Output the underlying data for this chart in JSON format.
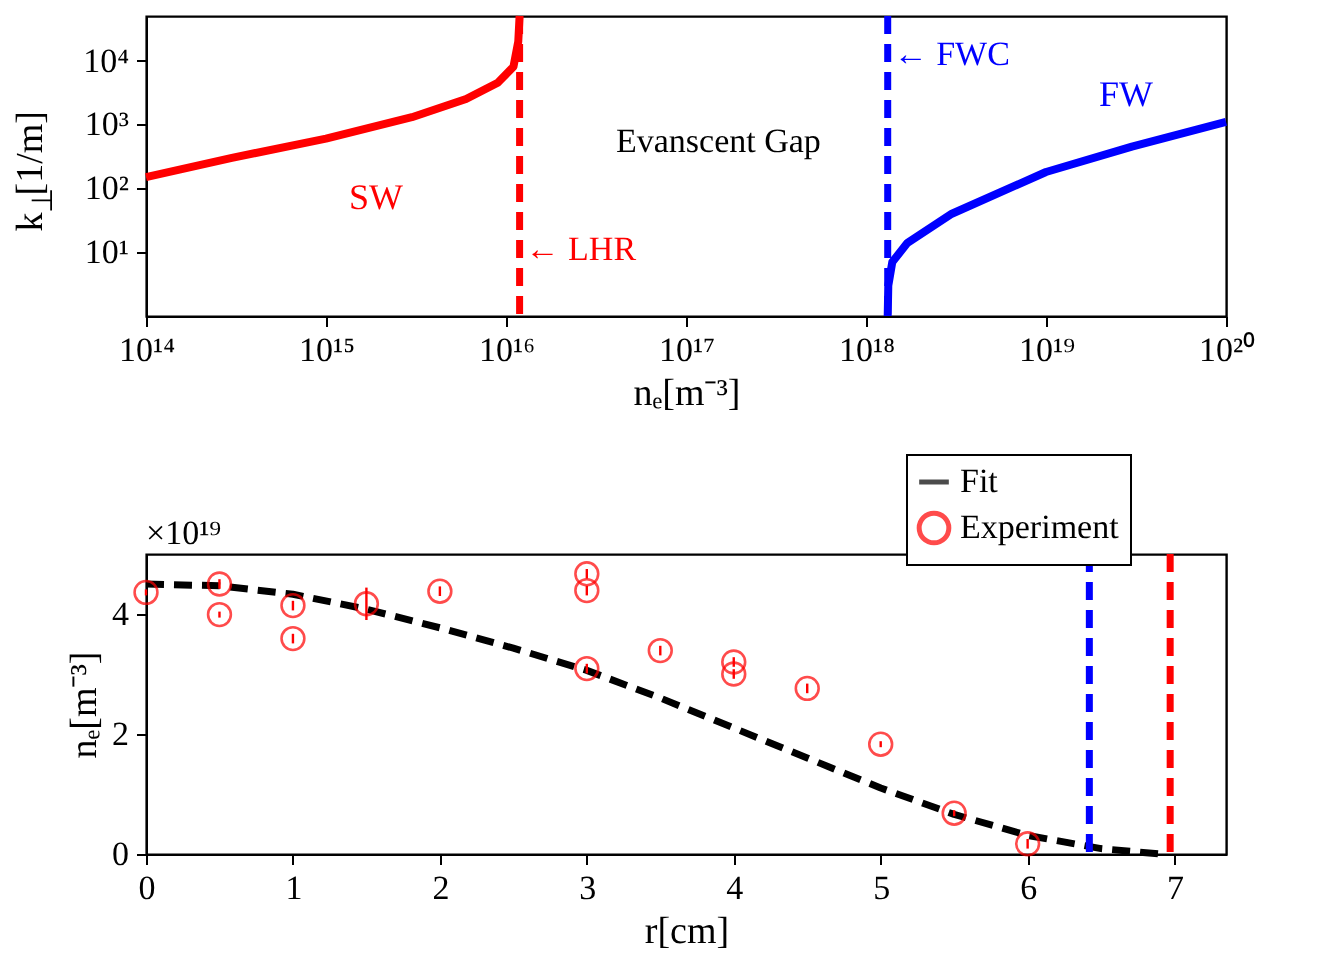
{
  "chart_data": [
    {
      "type": "line",
      "xlabel": "nₑ[m⁻³]",
      "ylabel": "k$_{⊥}$[1/m]",
      "log": "xy",
      "xlim": [
        100000000000000.0,
        1e+20
      ],
      "ylim": [
        1,
        50000
      ],
      "xticks": [
        {
          "value": 100000000000000.0,
          "label": "10¹⁴"
        },
        {
          "value": 1000000000000000.0,
          "label": "10¹⁵"
        },
        {
          "value": 1e+16,
          "label": "10¹⁶"
        },
        {
          "value": 1e+17,
          "label": "10¹⁷"
        },
        {
          "value": 1e+18,
          "label": "10¹⁸"
        },
        {
          "value": 1e+19,
          "label": "10¹⁹"
        },
        {
          "value": 1e+20,
          "label": "10²⁰"
        }
      ],
      "yticks": [
        {
          "value": 10,
          "label": "10¹"
        },
        {
          "value": 100,
          "label": "10²"
        },
        {
          "value": 1000,
          "label": "10³"
        },
        {
          "value": 10000,
          "label": "10⁴"
        }
      ],
      "line_style": "solid",
      "marker": "none",
      "series": [
        {
          "name": "SW",
          "color": "#ff0000",
          "x": [
            100000000000000.0,
            300000000000000.0,
            1000000000000000.0,
            3000000000000000.0,
            6000000000000000.0,
            9000000000000000.0,
            1.1e+16,
            1.17e+16,
            1.19e+16
          ],
          "values": [
            150,
            300,
            600,
            1300,
            2500,
            4500,
            8000,
            20000,
            50000
          ]
        },
        {
          "name": "FW",
          "color": "#0000ff",
          "x": [
            1.32e+18,
            1.33e+18,
            1.4e+18,
            1.7e+18,
            3e+18,
            1e+19,
            3e+19,
            1e+20
          ],
          "values": [
            1,
            3,
            7,
            14,
            40,
            180,
            450,
            1100
          ]
        }
      ],
      "ref_lines": [
        {
          "axis": "x",
          "value": 1.19e+16,
          "label": "← LHR",
          "color": "#ff0000",
          "line_style": "dashed"
        },
        {
          "axis": "x",
          "value": 1.32e+18,
          "label": "← FWC",
          "color": "#0000ff",
          "line_style": "dashed"
        }
      ],
      "annotations": [
        "Evanscent Gap"
      ]
    },
    {
      "type": "scatter",
      "xlabel": "r[cm]",
      "ylabel": "nₑ[m⁻³]",
      "xlim": [
        0,
        7.35
      ],
      "ylim": [
        0,
        5
      ],
      "xticks": [
        0,
        1,
        2,
        3,
        4,
        5,
        6,
        7
      ],
      "yticks": [
        0,
        2,
        4
      ],
      "legend": "top right",
      "series": [
        {
          "name": "Fit",
          "type": "line",
          "color": "#000000",
          "line_style": "dashed",
          "marker": "none",
          "x": [
            0,
            0.5,
            1,
            1.5,
            2,
            2.5,
            3,
            3.5,
            4,
            4.5,
            5,
            5.5,
            6,
            6.5,
            6.9
          ],
          "values": [
            4.5,
            4.47,
            4.33,
            4.08,
            3.77,
            3.43,
            3.06,
            2.6,
            2.1,
            1.6,
            1.1,
            0.66,
            0.31,
            0.09,
            0
          ]
        },
        {
          "name": "Experiment",
          "type": "scatter",
          "marker": "circle",
          "color": "#ff0000",
          "x": [
            0,
            0.5,
            0.5,
            1,
            1,
            1.5,
            2,
            3,
            3,
            3,
            3.5,
            4,
            4,
            4.5,
            5,
            5.5,
            6
          ],
          "values": [
            4.36,
            4.5,
            3.99,
            4.14,
            3.59,
            4.17,
            4.38,
            4.67,
            4.39,
            3.09,
            3.39,
            3.2,
            3.0,
            2.76,
            1.83,
            0.68,
            0.17
          ],
          "errors": [
            0.05,
            0.08,
            0.05,
            0.08,
            0.08,
            0.27,
            0.08,
            0.08,
            0.08,
            0.08,
            0.08,
            0.08,
            0.08,
            0.08,
            0.05,
            0.05,
            0.08
          ]
        }
      ],
      "ref_lines": [
        {
          "axis": "x",
          "value": 6.42,
          "color": "#0000ff",
          "line_style": "dashed"
        },
        {
          "axis": "x",
          "value": 6.97,
          "color": "#ff0000",
          "line_style": "dashed"
        }
      ],
      "annotations": [
        "×10¹⁹"
      ]
    }
  ]
}
